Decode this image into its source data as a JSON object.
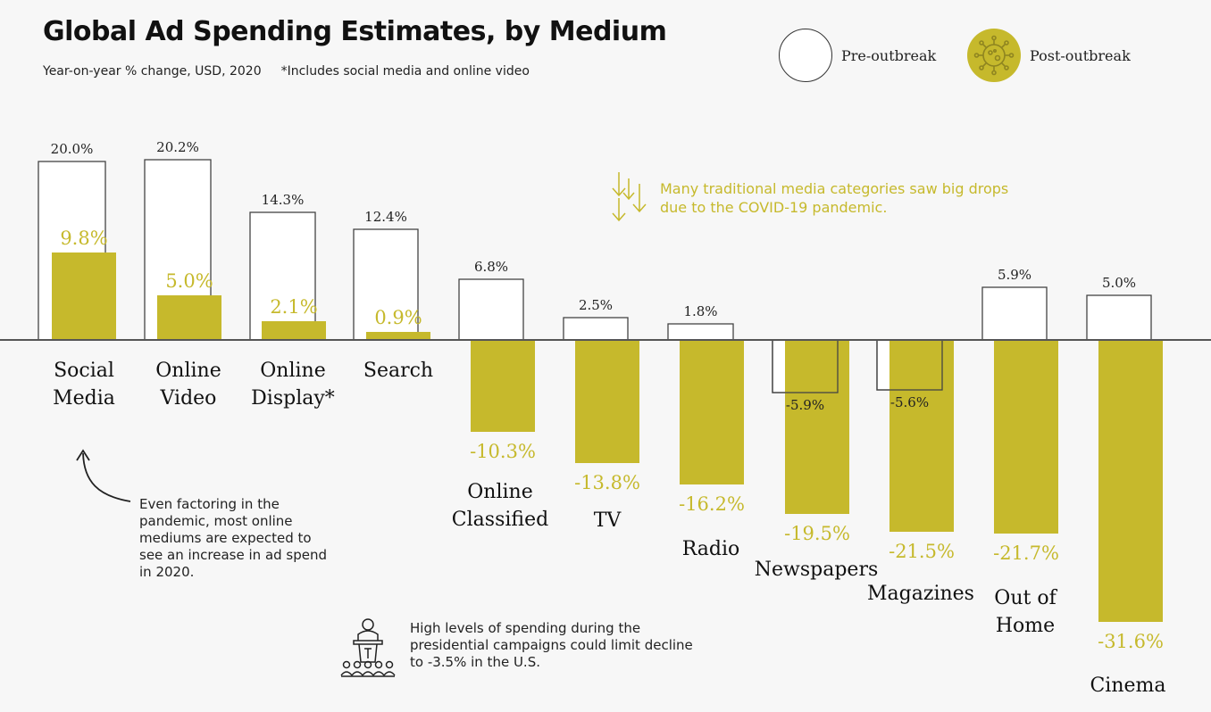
{
  "title": "Global Ad Spending Estimates, by Medium",
  "subtitle": "Year-on-year % change, USD, 2020",
  "subtitle_note": "*Includes social media and online video",
  "legend": {
    "pre_label": "Pre-outbreak",
    "post_label": "Post-outbreak"
  },
  "colors": {
    "post": "#c6b92c",
    "pre_fill": "#ffffff",
    "pre_stroke": "#444444",
    "axis": "#555555",
    "text": "#1a1a1a"
  },
  "annotations": {
    "online": "Even factoring in the pandemic, most online mediums are expected to see an increase in ad spend in 2020.",
    "traditional": "Many traditional media categories saw big drops due to the COVID-19 pandemic.",
    "campaign": "High levels of spending during the presidential campaigns could limit decline to -3.5% in the U.S."
  },
  "icons": {
    "legend_post": "virus-icon",
    "traditional": "down-arrows-icon",
    "campaign": "podium-crowd-icon",
    "online": "curved-arrow-icon"
  },
  "chart_data": {
    "type": "bar",
    "categories": [
      "Social Media",
      "Online Video",
      "Online Display*",
      "Search",
      "Online Classified",
      "TV",
      "Radio",
      "Newspapers",
      "Magazines",
      "Out of Home",
      "Cinema"
    ],
    "category_lines": [
      [
        "Social",
        "Media"
      ],
      [
        "Online",
        "Video"
      ],
      [
        "Online",
        "Display*"
      ],
      [
        "Search"
      ],
      [
        "Online",
        "Classified"
      ],
      [
        "TV"
      ],
      [
        "Radio"
      ],
      [
        "Newspapers"
      ],
      [
        "Magazines"
      ],
      [
        "Out of",
        "Home"
      ],
      [
        "Cinema"
      ]
    ],
    "series": [
      {
        "name": "Pre-outbreak",
        "values": [
          20.0,
          20.2,
          14.3,
          12.4,
          6.8,
          2.5,
          1.8,
          -5.9,
          -5.6,
          5.9,
          5.0
        ]
      },
      {
        "name": "Post-outbreak",
        "values": [
          9.8,
          5.0,
          2.1,
          0.9,
          -10.3,
          -13.8,
          -16.2,
          -19.5,
          -21.5,
          -21.7,
          -31.6
        ]
      }
    ],
    "pre_labels": [
      "20.0%",
      "20.2%",
      "14.3%",
      "12.4%",
      "6.8%",
      "2.5%",
      "1.8%",
      "-5.9%",
      "-5.6%",
      "5.9%",
      "5.0%"
    ],
    "post_labels": [
      "9.8%",
      "5.0%",
      "2.1%",
      "0.9%",
      "-10.3%",
      "-13.8%",
      "-16.2%",
      "-19.5%",
      "-21.5%",
      "-21.7%",
      "-31.6%"
    ],
    "unit": "%",
    "ylim": [
      -31.6,
      20.2
    ],
    "grid": false,
    "legend_position": "top-right"
  }
}
